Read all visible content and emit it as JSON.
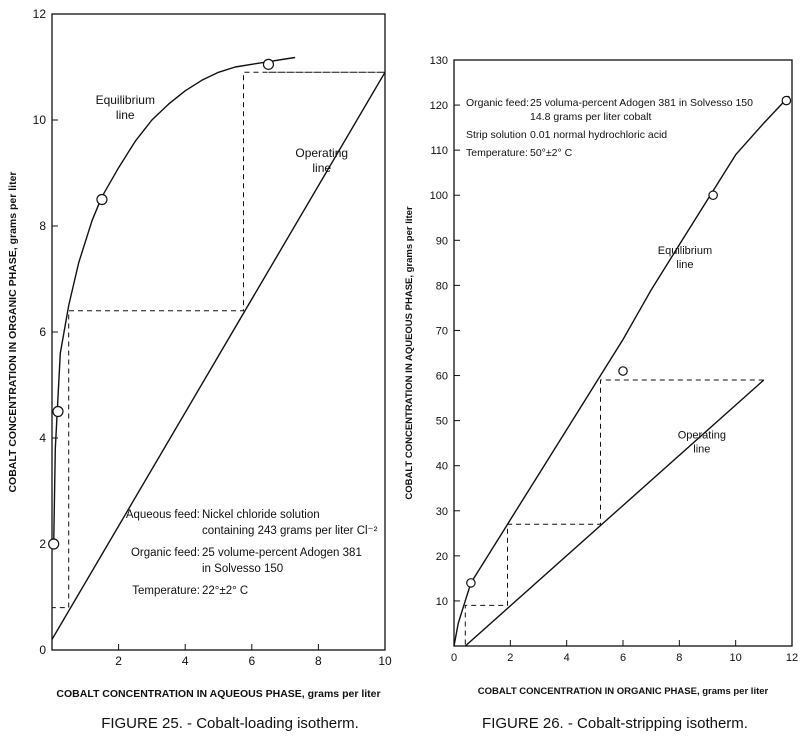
{
  "charts": [
    {
      "type": "line",
      "title": "",
      "caption": "FIGURE 25. - Cobalt-loading isotherm.",
      "xlabel": "COBALT CONCENTRATION IN AQUEOUS PHASE, grams per liter",
      "ylabel": "COBALT CONCENTRATION IN ORGANIC PHASE, grams per liter",
      "xlim": [
        0,
        10
      ],
      "ylim": [
        0,
        12
      ],
      "xticks": [
        "2",
        "4",
        "6",
        "8",
        "10"
      ],
      "yticks": [
        "0",
        "2",
        "4",
        "6",
        "8",
        "10",
        "12"
      ],
      "grid": false,
      "curve_labels": [
        {
          "text": "Equilibrium",
          "line2": "line",
          "x": 2.2,
          "y": 10.3
        },
        {
          "text": "Operating",
          "line2": "line",
          "x": 8.1,
          "y": 9.3
        }
      ],
      "series": [
        {
          "style": "curve",
          "x": [
            0.05,
            0.1,
            0.25,
            0.5,
            0.8,
            1.2,
            1.5,
            2.0,
            2.5,
            3.0,
            3.5,
            4.0,
            4.5,
            5.0,
            5.5,
            6.0,
            6.5,
            7.0,
            7.3
          ],
          "y": [
            2.0,
            3.8,
            5.6,
            6.5,
            7.3,
            8.1,
            8.55,
            9.1,
            9.6,
            10.0,
            10.3,
            10.55,
            10.75,
            10.9,
            11.0,
            11.05,
            11.1,
            11.15,
            11.18
          ]
        },
        {
          "style": "line",
          "x": [
            0,
            10
          ],
          "y": [
            0.2,
            10.9
          ]
        },
        {
          "style": "steps",
          "x": [
            6.5,
            10,
            10,
            5.75,
            5.75,
            0.5,
            0.5,
            0
          ],
          "y": [
            10.9,
            10.9,
            10.9,
            10.9,
            6.4,
            6.4,
            0.8,
            0.8
          ]
        }
      ],
      "points": {
        "x": [
          0.05,
          0.18,
          1.5,
          6.5
        ],
        "y": [
          2.0,
          4.5,
          8.5,
          11.05
        ]
      },
      "notes": [
        {
          "label": "Aqueous feed:",
          "lines": [
            "Nickel chloride solution",
            "containing 243 grams per liter Cl⁻²"
          ]
        },
        {
          "label": "Organic feed:",
          "lines": [
            "25 volume-percent Adogen 381",
            "in Solvesso 150"
          ]
        },
        {
          "label": "Temperature:",
          "lines": [
            "22°±2° C"
          ]
        }
      ]
    },
    {
      "type": "line",
      "title": "",
      "caption": "FIGURE 26. - Cobalt-stripping isotherm.",
      "xlabel": "COBALT CONCENTRATION IN ORGANIC PHASE, grams per liter",
      "ylabel": "COBALT CONCENTRATION IN AQUEOUS PHASE, grams per liter",
      "xlim": [
        0,
        12
      ],
      "ylim": [
        0,
        130
      ],
      "xticks": [
        "0",
        "2",
        "4",
        "6",
        "8",
        "10",
        "12"
      ],
      "yticks": [
        "10",
        "20",
        "30",
        "40",
        "50",
        "60",
        "70",
        "80",
        "90",
        "100",
        "110",
        "120",
        "130"
      ],
      "grid": false,
      "curve_labels": [
        {
          "text": "Equilibrium",
          "line2": "line",
          "x": 8.2,
          "y": 87
        },
        {
          "text": "Operating",
          "line2": "line",
          "x": 8.8,
          "y": 46
        }
      ],
      "series": [
        {
          "style": "curve",
          "x": [
            0,
            0.15,
            0.3,
            0.6,
            1.0,
            2.0,
            3.0,
            4.0,
            5.0,
            6.0,
            7.0,
            8.0,
            9.0,
            10.0,
            11.0,
            11.9
          ],
          "y": [
            0,
            5,
            8,
            14,
            18,
            28,
            38,
            48,
            58,
            68,
            79,
            89,
            99,
            109,
            116,
            122
          ]
        },
        {
          "style": "line",
          "x": [
            0.4,
            11.0
          ],
          "y": [
            0,
            59
          ]
        },
        {
          "style": "steps",
          "x": [
            11.0,
            5.2,
            5.2,
            1.9,
            1.9,
            0.4,
            0.4,
            0.4
          ],
          "y": [
            59,
            59,
            27,
            27,
            9,
            9,
            0,
            0
          ]
        }
      ],
      "points": {
        "x": [
          0.6,
          6.0,
          9.2,
          11.8
        ],
        "y": [
          14,
          61,
          100,
          121
        ]
      },
      "notes": [
        {
          "label": "Organic feed:",
          "lines": [
            "25 voluma-percent Adogen 381 in Solvesso 150",
            "14.8 grams per liter cobalt"
          ]
        },
        {
          "label": "Strip solution",
          "lines": [
            "0.01 normal hydrochloric acid"
          ]
        },
        {
          "label": "Temperature:",
          "lines": [
            "50°±2° C"
          ]
        }
      ]
    }
  ]
}
